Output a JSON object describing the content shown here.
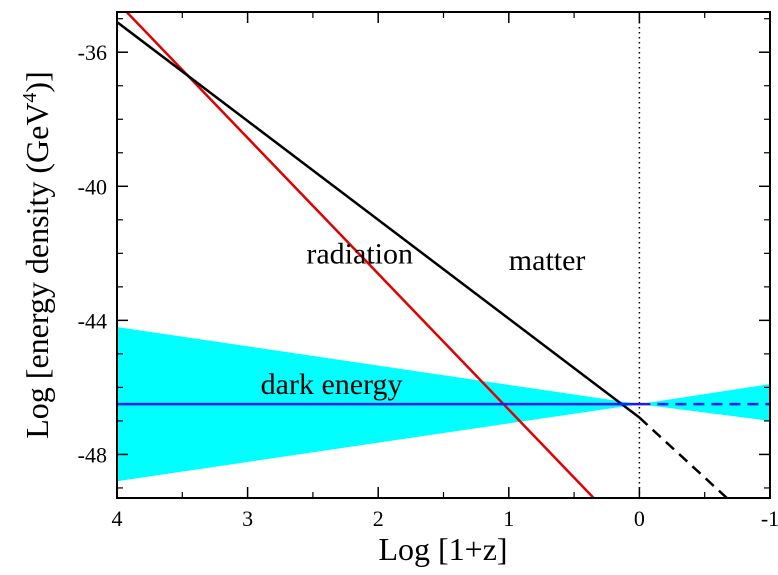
{
  "chart_data": {
    "type": "line",
    "xlabel": "Log [1+z]",
    "ylabel_main": "Log [energy density (GeV",
    "ylabel_sup": "4",
    "ylabel_close": ")]",
    "xlim": [
      4,
      -1
    ],
    "ylim": [
      -49.3,
      -34.8
    ],
    "x_ticks": [
      4,
      3,
      2,
      1,
      0,
      -1
    ],
    "x_tick_labels": [
      "4",
      "3",
      "2",
      "1",
      "0",
      "-1"
    ],
    "y_ticks": [
      -36,
      -40,
      -44,
      -48
    ],
    "y_tick_labels": [
      "-36",
      "-40",
      "-44",
      "-48"
    ],
    "grid": false,
    "annotations": [
      {
        "text": "radiation",
        "x": 2.55,
        "y": -42.3
      },
      {
        "text": "matter",
        "x": 1.0,
        "y": -42.5
      },
      {
        "text": "dark energy",
        "x": 2.9,
        "y": -46.2
      }
    ],
    "series": [
      {
        "key": "radiation",
        "color": "#e00000",
        "style": "solid",
        "points": [
          [
            4,
            -34.5
          ],
          [
            0.35,
            -49.3
          ]
        ]
      },
      {
        "key": "matter",
        "color": "#000000",
        "style": "solid",
        "points": [
          [
            4,
            -35.1
          ],
          [
            0,
            -46.9
          ]
        ]
      },
      {
        "key": "matter_future",
        "color": "#000000",
        "style": "dashed",
        "points": [
          [
            0,
            -46.9
          ],
          [
            -0.67,
            -49.3
          ]
        ]
      },
      {
        "key": "dark_energy",
        "color": "#1a1aff",
        "style": "solid",
        "points": [
          [
            4,
            -46.5
          ],
          [
            0,
            -46.5
          ]
        ]
      },
      {
        "key": "dark_energy_future",
        "color": "#1a1aff",
        "style": "dashed",
        "points": [
          [
            0,
            -46.5
          ],
          [
            -1,
            -46.5
          ]
        ]
      }
    ],
    "band": {
      "name": "dark energy",
      "color": "#00ffff",
      "upper": [
        [
          4,
          -44.2
        ],
        [
          0,
          -46.5
        ],
        [
          -1,
          -45.9
        ]
      ],
      "lower": [
        [
          4,
          -48.8
        ],
        [
          0,
          -46.5
        ],
        [
          -1,
          -47.0
        ]
      ]
    },
    "today_marker": {
      "x": 0,
      "style": "dotted",
      "color": "#000000"
    }
  }
}
